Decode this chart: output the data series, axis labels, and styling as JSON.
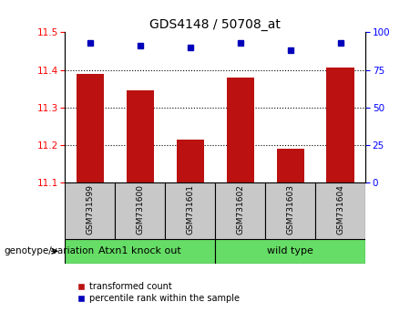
{
  "title": "GDS4148 / 50708_at",
  "samples": [
    "GSM731599",
    "GSM731600",
    "GSM731601",
    "GSM731602",
    "GSM731603",
    "GSM731604"
  ],
  "bar_values": [
    11.39,
    11.345,
    11.215,
    11.38,
    11.19,
    11.405
  ],
  "percentile_values": [
    93,
    91,
    90,
    93,
    88,
    93
  ],
  "ylim_left": [
    11.1,
    11.5
  ],
  "ylim_right": [
    0,
    100
  ],
  "yticks_left": [
    11.1,
    11.2,
    11.3,
    11.4,
    11.5
  ],
  "yticks_right": [
    0,
    25,
    50,
    75,
    100
  ],
  "bar_color": "#bb1111",
  "dot_color": "#0000bb",
  "bar_bottom": 11.1,
  "group1_label": "Atxn1 knock out",
  "group2_label": "wild type",
  "group_color": "#66dd66",
  "xlabel_area_color": "#c8c8c8",
  "legend_red_label": "transformed count",
  "legend_blue_label": "percentile rank within the sample",
  "genotype_label": "genotype/variation",
  "bar_width": 0.55,
  "xlim": [
    -0.5,
    5.5
  ]
}
